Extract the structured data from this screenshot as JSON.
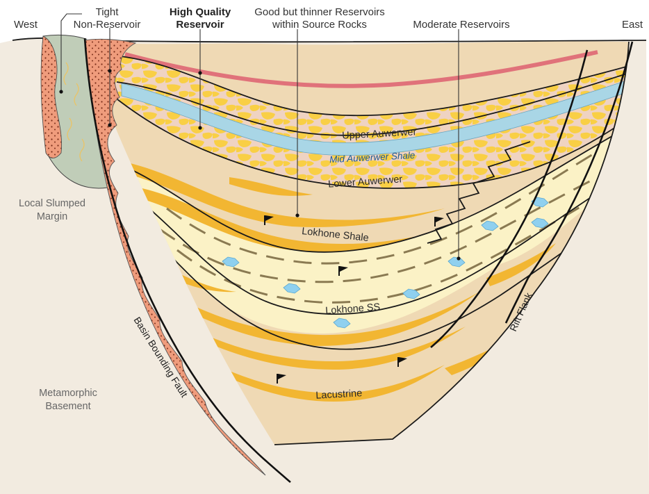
{
  "labels": {
    "west": "West",
    "east": "East",
    "tight_line1": "Tight",
    "tight_line2": "Non-Reservoir",
    "hq_line1": "High Quality",
    "hq_line2": "Reservoir",
    "thin_line1": "Good but thinner Reservoirs",
    "thin_line2": "within Source Rocks",
    "moderate": "Moderate Reservoirs",
    "upper_auwerwer": "Upper Auwerwer",
    "mid_auwerwer_shale": "Mid Auwerwer Shale",
    "lower_auwerwer": "Lower Auwerwer",
    "lokhone_shale": "Lokhone Shale",
    "lokhone_ss": "Lokhone SS",
    "lacustrine": "Lacustrine",
    "slumped_line1": "Local Slumped",
    "slumped_line2": "Margin",
    "basement_line1": "Metamorphic",
    "basement_line2": "Basement",
    "basin_fault": "Basin Bounding Fault",
    "rift_flank": "Rift Flank"
  },
  "colors": {
    "basement": "#f2ebe0",
    "basin_fill": "#efd9b4",
    "lokhone_ss": "#fbf2c6",
    "auwerwer_matrix": "#efd3c2",
    "sand_lens": "#f2b632",
    "sand_yellow": "#f9cf45",
    "mid_shale": "#a9d6e6",
    "fault_breccia": "#ef9c7c",
    "slump": "#c0cdb8",
    "gas_marker": "#8fd0ef",
    "red_bed": "#e0727a"
  }
}
